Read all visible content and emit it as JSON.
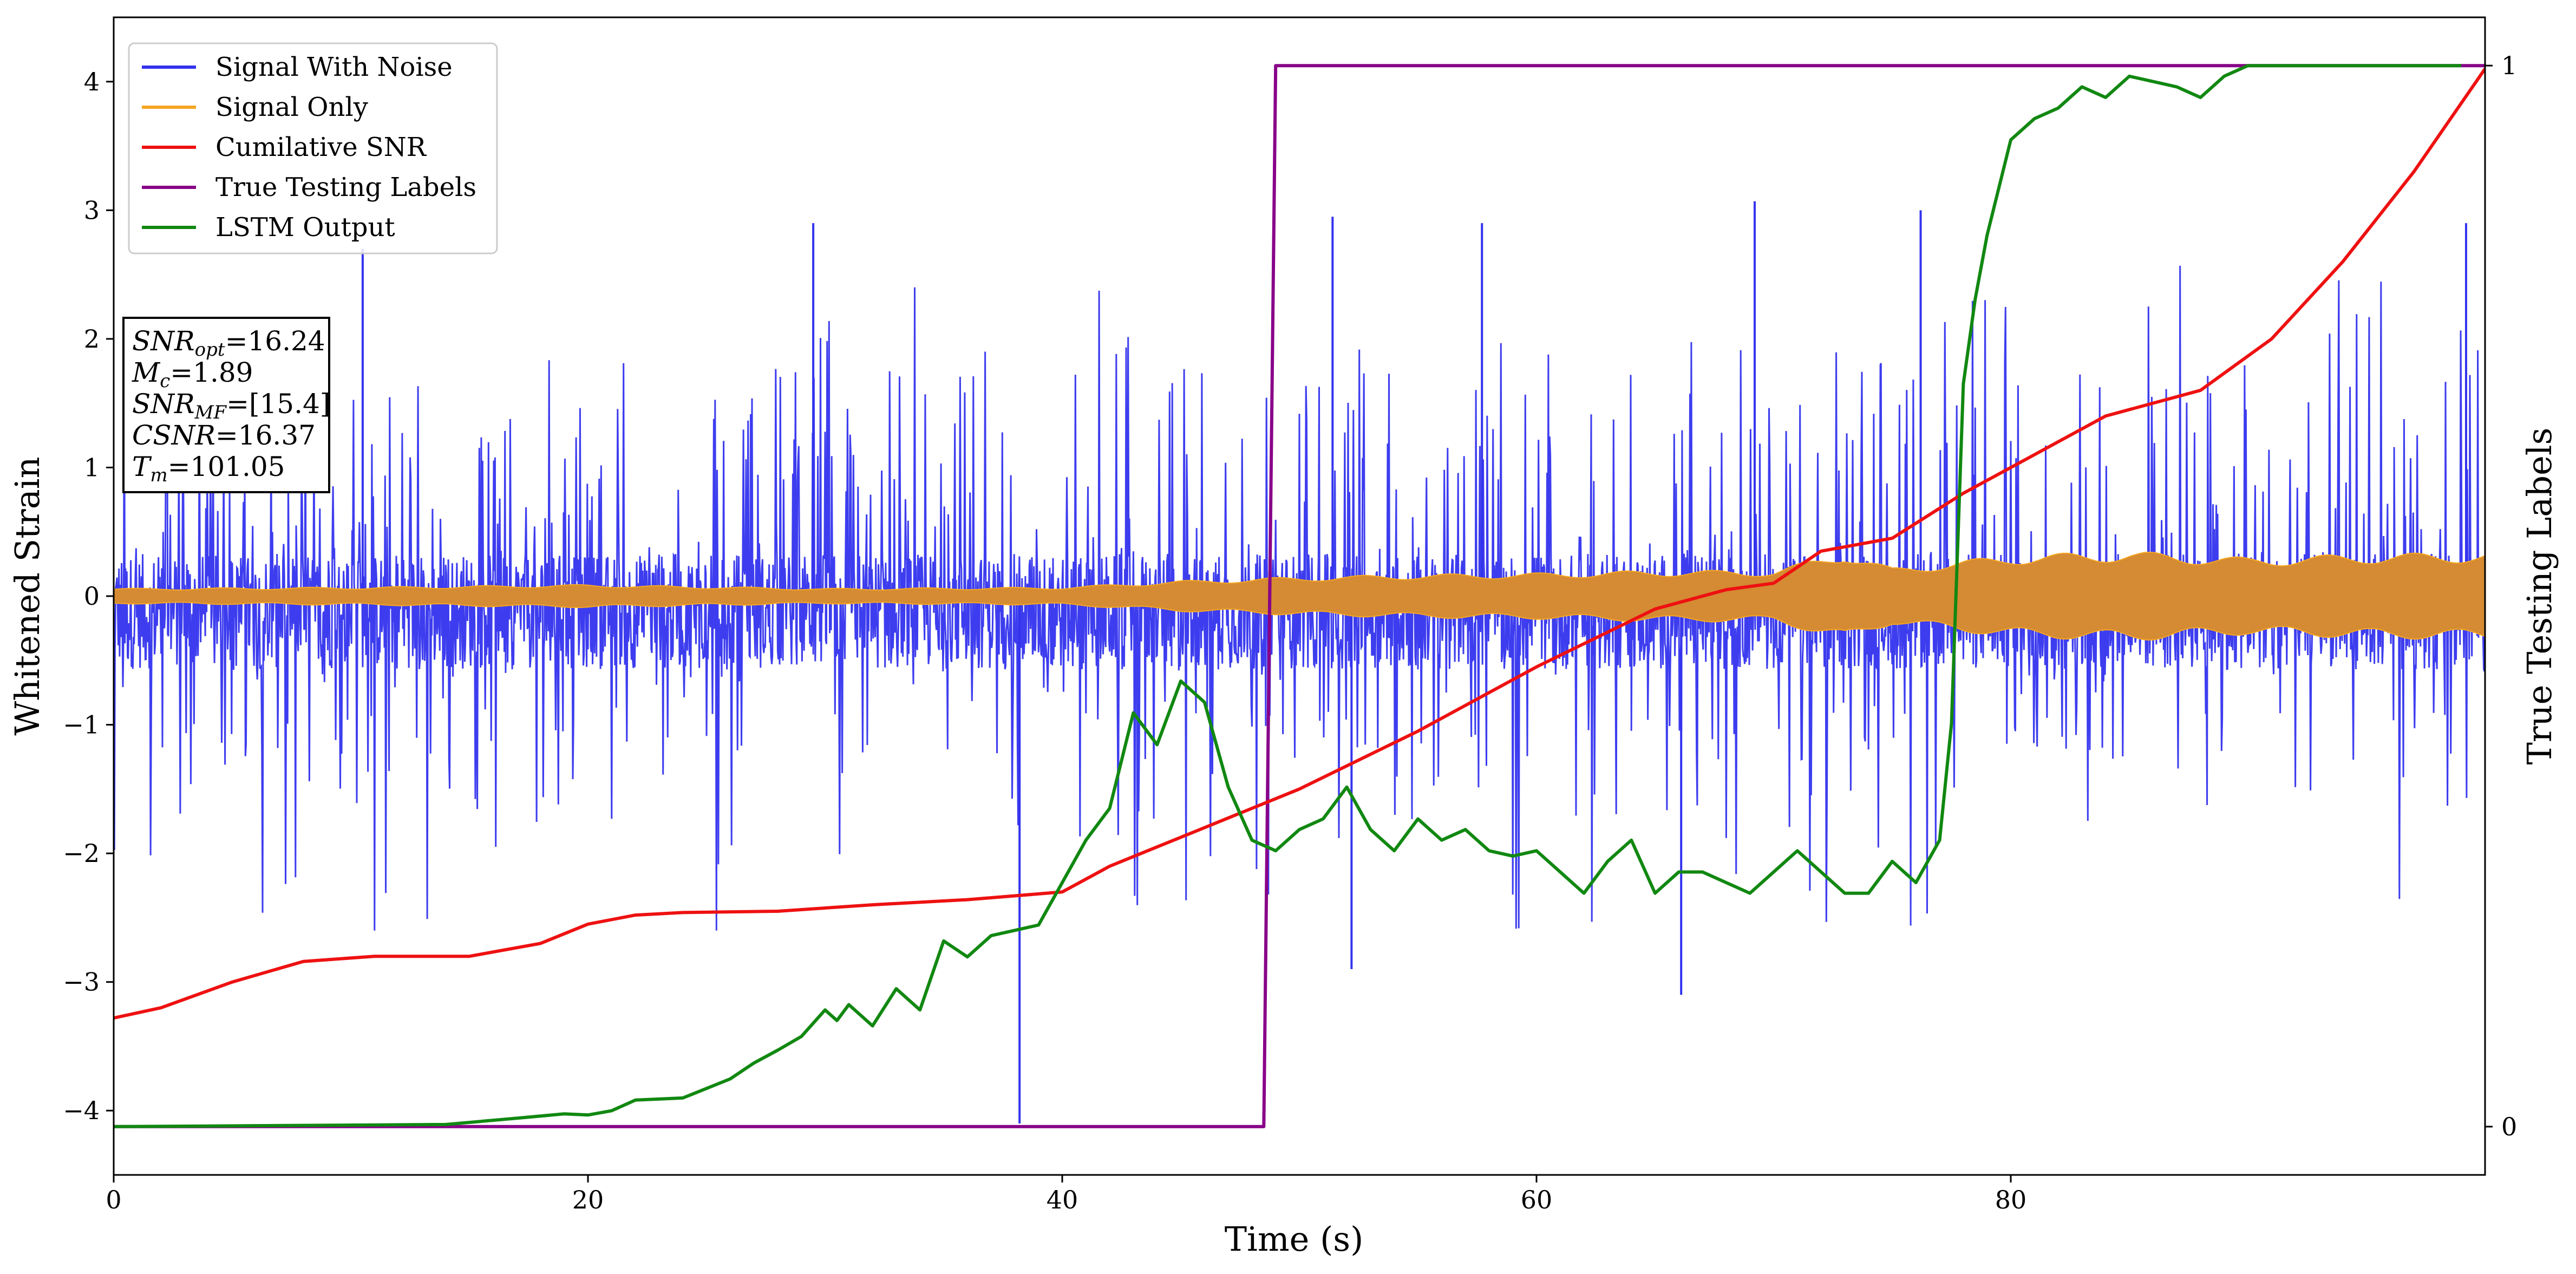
{
  "chart_data": {
    "type": "line",
    "xlabel": "Time (s)",
    "ylabel": "Whitened Strain",
    "y2label": "True Testing Labels",
    "xlim": [
      0,
      100
    ],
    "ylim": [
      -4.5,
      4.5
    ],
    "y2lim": [
      -0.0455,
      1.0455
    ],
    "xticks": [
      0,
      20,
      40,
      60,
      80
    ],
    "yticks": [
      -4,
      -3,
      -2,
      -1,
      0,
      1,
      2,
      3,
      4
    ],
    "y2ticks": [
      0,
      1
    ],
    "grid": false,
    "legend_position": "top-left",
    "series": [
      {
        "name": "Signal With Noise",
        "color": "#3333ee",
        "axis": "left",
        "style": "dense noisy oscillation about 0",
        "typical_range": [
          -1.6,
          1.4
        ],
        "extreme_peaks": [
          {
            "x": 10.5,
            "y": 2.7
          },
          {
            "x": 29.5,
            "y": 2.9
          },
          {
            "x": 38.2,
            "y": -4.1
          },
          {
            "x": 51.4,
            "y": 2.95
          },
          {
            "x": 52.2,
            "y": -2.9
          },
          {
            "x": 57.7,
            "y": 2.9
          },
          {
            "x": 66.1,
            "y": -3.1
          },
          {
            "x": 69.2,
            "y": 3.07
          },
          {
            "x": 76.2,
            "y": 3.0
          },
          {
            "x": 99.2,
            "y": 2.9
          }
        ]
      },
      {
        "name": "Signal Only",
        "color": "#f5a623",
        "axis": "left",
        "style": "chirp with slowly growing amplitude",
        "envelope": {
          "x": [
            0,
            10,
            20,
            30,
            40,
            45,
            50,
            55,
            60,
            65,
            70,
            73,
            75,
            80,
            85,
            90,
            95,
            100
          ],
          "amp": [
            0.06,
            0.07,
            0.09,
            0.06,
            0.07,
            0.12,
            0.15,
            0.17,
            0.18,
            0.2,
            0.2,
            0.35,
            0.22,
            0.32,
            0.35,
            0.3,
            0.33,
            0.34
          ]
        }
      },
      {
        "name": "Cumilative SNR",
        "color": "#ee1111",
        "axis": "left",
        "x": [
          0,
          2,
          5,
          8,
          11,
          15,
          18,
          20,
          22,
          24,
          28,
          32,
          36,
          40,
          42,
          44,
          46,
          50,
          55,
          60,
          65,
          68,
          70,
          72,
          75,
          78,
          81,
          84,
          88,
          91,
          94,
          97,
          100
        ],
        "y": [
          -3.28,
          -3.2,
          -3.0,
          -2.84,
          -2.8,
          -2.8,
          -2.7,
          -2.55,
          -2.48,
          -2.46,
          -2.45,
          -2.4,
          -2.36,
          -2.3,
          -2.1,
          -1.95,
          -1.8,
          -1.5,
          -1.05,
          -0.55,
          -0.1,
          0.05,
          0.1,
          0.35,
          0.45,
          0.8,
          1.1,
          1.4,
          1.6,
          2.0,
          2.6,
          3.3,
          4.1
        ]
      },
      {
        "name": "True Testing Labels",
        "color": "#880088",
        "axis": "right",
        "x": [
          0,
          48.5,
          49.0,
          100
        ],
        "y": [
          0,
          0,
          1,
          1
        ]
      },
      {
        "name": "LSTM Output",
        "color": "#118811",
        "axis": "right",
        "x": [
          0,
          14,
          17,
          19,
          20,
          21,
          22,
          24,
          26,
          27,
          28,
          29,
          30,
          30.5,
          31,
          32,
          33,
          34,
          35,
          36,
          37,
          38,
          39,
          40,
          41,
          42,
          43,
          44,
          45,
          46,
          47,
          48,
          49,
          50,
          51,
          52,
          53,
          54,
          55,
          56,
          57,
          58,
          59,
          60,
          61,
          62,
          63,
          64,
          65,
          66,
          67,
          68,
          69,
          70,
          71,
          72,
          73,
          74,
          75,
          76,
          77,
          77.5,
          78,
          78.5,
          79,
          80,
          81,
          82,
          83,
          84,
          85,
          86,
          87,
          88,
          89,
          90,
          95,
          99
        ],
        "y": [
          0,
          0.002,
          0.008,
          0.012,
          0.011,
          0.015,
          0.025,
          0.027,
          0.045,
          0.06,
          0.072,
          0.085,
          0.11,
          0.1,
          0.115,
          0.095,
          0.13,
          0.11,
          0.175,
          0.16,
          0.18,
          0.185,
          0.19,
          0.23,
          0.27,
          0.3,
          0.39,
          0.36,
          0.42,
          0.4,
          0.32,
          0.27,
          0.26,
          0.28,
          0.29,
          0.32,
          0.28,
          0.26,
          0.29,
          0.27,
          0.28,
          0.26,
          0.255,
          0.26,
          0.24,
          0.22,
          0.25,
          0.27,
          0.22,
          0.24,
          0.24,
          0.23,
          0.22,
          0.24,
          0.26,
          0.24,
          0.22,
          0.22,
          0.25,
          0.23,
          0.27,
          0.38,
          0.7,
          0.78,
          0.84,
          0.93,
          0.95,
          0.96,
          0.98,
          0.97,
          0.99,
          0.985,
          0.98,
          0.97,
          0.99,
          1,
          1,
          1
        ]
      }
    ]
  },
  "legend": {
    "items": [
      {
        "label": "Signal With Noise",
        "color": "#3333ee"
      },
      {
        "label": "Signal Only",
        "color": "#f5a623"
      },
      {
        "label": "Cumilative SNR",
        "color": "#ee1111"
      },
      {
        "label": "True Testing Labels",
        "color": "#880088"
      },
      {
        "label": "LSTM Output",
        "color": "#118811"
      }
    ]
  },
  "info_box": {
    "lines": [
      {
        "sym": "SNR",
        "sub": "opt",
        "value": "=16.24"
      },
      {
        "sym": "M",
        "sub": "c",
        "value": "=1.89"
      },
      {
        "sym": "SNR",
        "sub": "MF",
        "value": "=[15.4]"
      },
      {
        "sym": "CSNR",
        "sub": "",
        "value": "=16.37"
      },
      {
        "sym": "T",
        "sub": "m",
        "value": "=101.05"
      }
    ]
  },
  "colors": {
    "noise_signal": "#3333ee",
    "signal_only": "#d48b33",
    "snr": "#ee1111",
    "labels": "#880088",
    "lstm": "#118811"
  }
}
